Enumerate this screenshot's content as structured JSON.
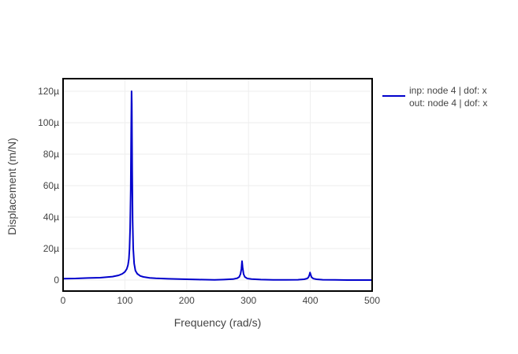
{
  "chart_data": {
    "type": "line",
    "xlabel": "Frequency (rad/s)",
    "ylabel": "Displacement (m/N)",
    "xlim": [
      0,
      500
    ],
    "ylim": [
      -7,
      128
    ],
    "x_ticks": [
      0,
      100,
      200,
      300,
      400,
      500
    ],
    "x_tick_labels": [
      "0",
      "100",
      "200",
      "300",
      "400",
      "500"
    ],
    "y_ticks": [
      0,
      20,
      40,
      60,
      80,
      100,
      120
    ],
    "y_tick_labels": [
      "0",
      "20µ",
      "40µ",
      "60µ",
      "80µ",
      "100µ",
      "120µ"
    ],
    "grid": true,
    "legend_position": "right",
    "series": [
      {
        "name": "inp: node 4 | dof: x\nout: node 4 | dof: x",
        "legend_lines": [
          "inp: node 4 | dof: x",
          "out: node 4 | dof: x"
        ],
        "color": "#0000cc",
        "x": [
          0,
          20,
          40,
          60,
          80,
          90,
          96,
          100,
          103,
          105,
          106.5,
          107.5,
          108.5,
          109.5,
          110.2,
          110.8,
          111.2,
          111.8,
          112.5,
          113.5,
          115,
          117,
          120,
          125,
          130,
          140,
          150,
          170,
          200,
          220,
          245,
          260,
          275,
          282,
          285,
          287,
          288.5,
          289.5,
          290.5,
          292,
          294,
          298,
          305,
          320,
          340,
          360,
          380,
          390,
          395,
          397,
          398.5,
          399.5,
          400.5,
          402,
          405,
          410,
          420,
          440,
          460,
          480,
          500
        ],
        "y": [
          0.9,
          1.0,
          1.3,
          1.5,
          2.2,
          3.0,
          4.0,
          5.2,
          7.0,
          9.5,
          13.5,
          20,
          33,
          58,
          95,
          120,
          112,
          70,
          38,
          20,
          10.5,
          6.0,
          4.0,
          2.6,
          2.0,
          1.4,
          1.1,
          0.8,
          0.5,
          0.3,
          0.1,
          0.3,
          0.6,
          1.2,
          2.0,
          3.8,
          7.0,
          12.0,
          8.0,
          3.8,
          2.0,
          1.0,
          0.6,
          0.3,
          0.1,
          0.1,
          0.2,
          0.5,
          1.0,
          1.8,
          3.2,
          4.8,
          3.5,
          1.8,
          0.9,
          0.5,
          0.2,
          0.1,
          0.0,
          0.0,
          0.0
        ]
      }
    ]
  }
}
